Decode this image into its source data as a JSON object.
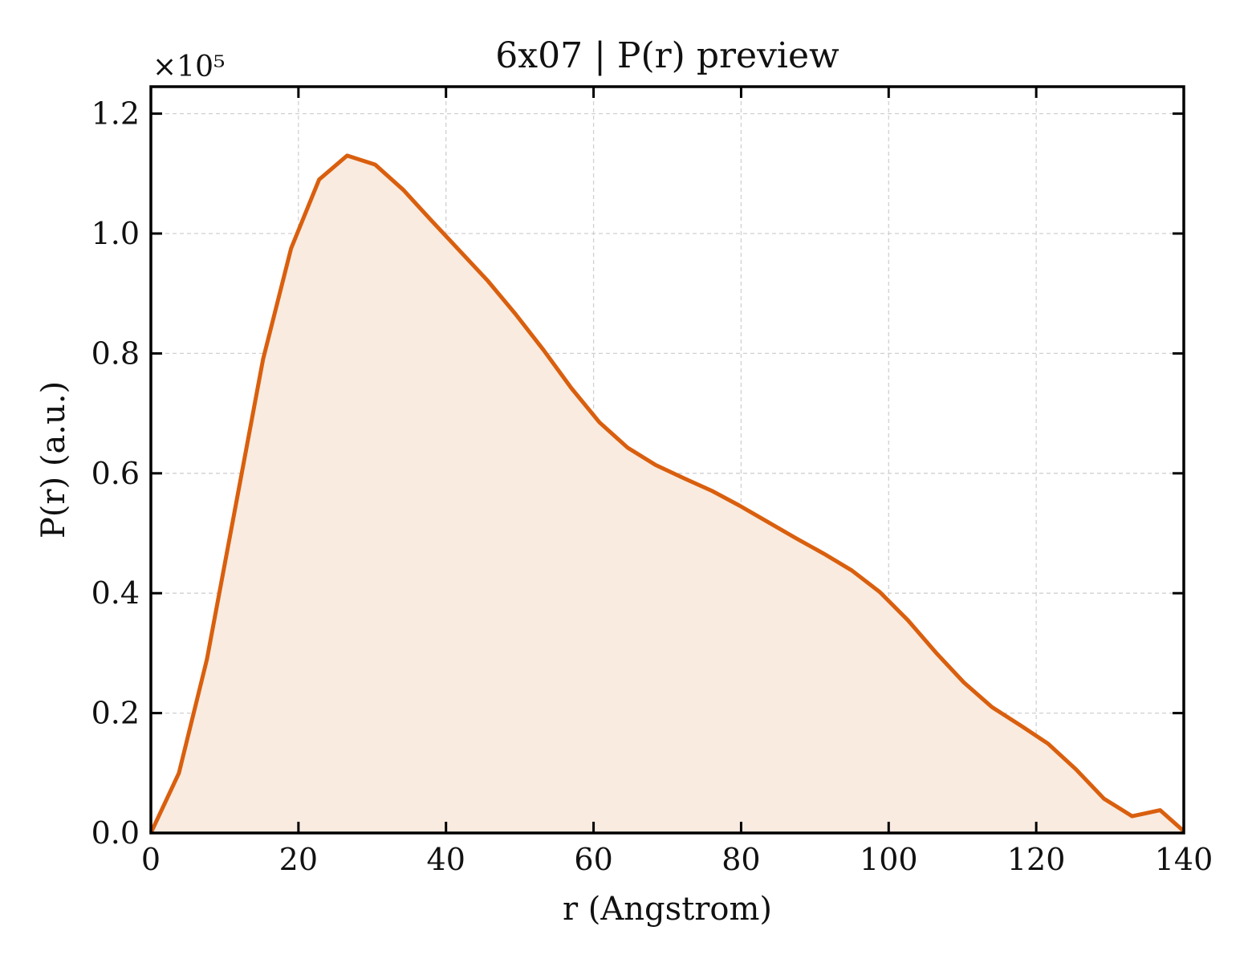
{
  "chart_data": {
    "type": "area",
    "title": "6x07 | P(r) preview",
    "xlabel": "r (Angstrom)",
    "ylabel": "P(r) (a.u.)",
    "y_multiplier_label": "×10⁵",
    "xlim": [
      0,
      140
    ],
    "ylim": [
      0,
      1.245
    ],
    "grid": true,
    "x_ticks": [
      0,
      20,
      40,
      60,
      80,
      100,
      120,
      140
    ],
    "x_tick_labels": [
      "0",
      "20",
      "40",
      "60",
      "80",
      "100",
      "120",
      "140"
    ],
    "y_ticks": [
      0.0,
      0.2,
      0.4,
      0.6,
      0.8,
      1.0,
      1.2
    ],
    "y_tick_labels": [
      "0.0",
      "0.2",
      "0.4",
      "0.6",
      "0.8",
      "1.0",
      "1.2"
    ],
    "colors": {
      "line": "#d95f0e",
      "fill": "#f9ebe0",
      "grid": "#d0d0d0"
    },
    "series": [
      {
        "x": [
          0,
          3.8,
          7.6,
          11.4,
          15.2,
          19.0,
          22.8,
          26.6,
          30.4,
          34.2,
          38.0,
          41.8,
          45.6,
          49.4,
          53.2,
          57.0,
          60.8,
          64.6,
          68.4,
          72.2,
          76.0,
          79.8,
          83.6,
          87.4,
          91.2,
          95.0,
          98.8,
          102.6,
          106.4,
          110.2,
          114.0,
          117.8,
          121.6,
          125.4,
          129.2,
          133.0,
          136.8,
          140.0
        ],
        "y": [
          0.0,
          0.1,
          0.29,
          0.54,
          0.79,
          0.975,
          1.09,
          1.13,
          1.115,
          1.073,
          1.022,
          0.972,
          0.922,
          0.866,
          0.806,
          0.742,
          0.685,
          0.643,
          0.614,
          0.592,
          0.571,
          0.546,
          0.519,
          0.492,
          0.466,
          0.438,
          0.402,
          0.355,
          0.301,
          0.251,
          0.21,
          0.18,
          0.149,
          0.106,
          0.057,
          0.028,
          0.038,
          0.003
        ]
      }
    ]
  }
}
